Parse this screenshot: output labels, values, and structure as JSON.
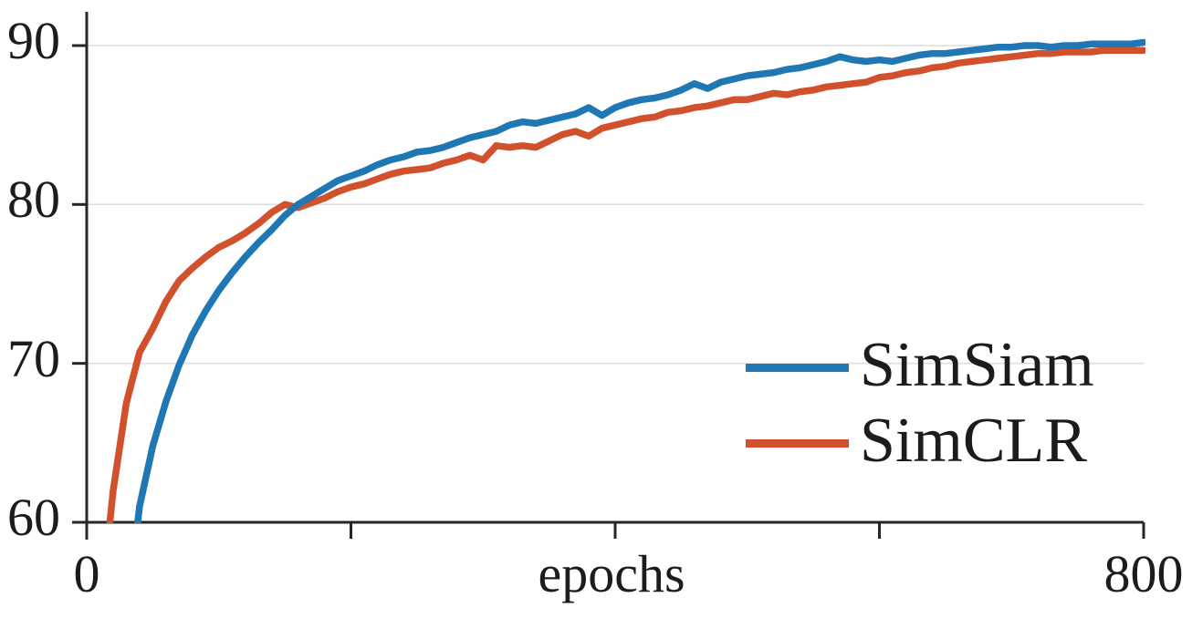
{
  "chart_data": {
    "type": "line",
    "title": "",
    "xlabel": "epochs",
    "ylabel": "",
    "xlim": [
      0,
      800
    ],
    "ylim": [
      60,
      90
    ],
    "xticks": [
      0,
      200,
      400,
      600,
      800
    ],
    "xtick_labels": [
      "0",
      "",
      "",
      "",
      "800"
    ],
    "yticks": [
      60,
      70,
      80,
      90
    ],
    "ytick_labels": [
      "60",
      "70",
      "80",
      "90"
    ],
    "grid": "horizontal-above-60",
    "grid_color": "#dedede",
    "axis_color": "#262626",
    "text_color": "#1c1c1c",
    "background": "#ffffff",
    "legend_position": "lower right",
    "series": [
      {
        "name": "SimSiam",
        "color": "#1f77b4",
        "x": [
          30,
          40,
          50,
          60,
          70,
          80,
          90,
          100,
          110,
          120,
          130,
          140,
          150,
          160,
          170,
          180,
          190,
          200,
          210,
          220,
          230,
          240,
          250,
          260,
          270,
          280,
          290,
          300,
          310,
          320,
          330,
          340,
          350,
          360,
          370,
          380,
          390,
          400,
          410,
          420,
          430,
          440,
          450,
          460,
          470,
          480,
          490,
          500,
          510,
          520,
          530,
          540,
          550,
          560,
          570,
          580,
          590,
          600,
          610,
          620,
          630,
          640,
          650,
          660,
          670,
          680,
          690,
          700,
          710,
          720,
          730,
          740,
          750,
          760,
          770,
          780,
          790,
          800
        ],
        "y": [
          54.0,
          61.0,
          64.8,
          67.6,
          69.9,
          71.8,
          73.3,
          74.6,
          75.7,
          76.7,
          77.6,
          78.4,
          79.3,
          80.0,
          80.5,
          81.0,
          81.5,
          81.8,
          82.1,
          82.5,
          82.8,
          83.0,
          83.3,
          83.4,
          83.6,
          83.9,
          84.2,
          84.4,
          84.6,
          85.0,
          85.2,
          85.1,
          85.3,
          85.5,
          85.7,
          86.1,
          85.6,
          86.1,
          86.4,
          86.6,
          86.7,
          86.9,
          87.2,
          87.6,
          87.3,
          87.7,
          87.9,
          88.1,
          88.2,
          88.3,
          88.5,
          88.6,
          88.8,
          89.0,
          89.3,
          89.1,
          89.0,
          89.1,
          89.0,
          89.2,
          89.4,
          89.5,
          89.5,
          89.6,
          89.7,
          89.8,
          89.9,
          89.9,
          90.0,
          90.0,
          89.9,
          90.0,
          90.0,
          90.1,
          90.1,
          90.1,
          90.1,
          90.2
        ]
      },
      {
        "name": "SimCLR",
        "color": "#d1512d",
        "x": [
          10,
          20,
          30,
          40,
          50,
          60,
          70,
          80,
          90,
          100,
          110,
          120,
          130,
          140,
          150,
          160,
          170,
          180,
          190,
          200,
          210,
          220,
          230,
          240,
          250,
          260,
          270,
          280,
          290,
          300,
          310,
          320,
          330,
          340,
          350,
          360,
          370,
          380,
          390,
          400,
          410,
          420,
          430,
          440,
          450,
          460,
          470,
          480,
          490,
          500,
          510,
          520,
          530,
          540,
          550,
          560,
          570,
          580,
          590,
          600,
          610,
          620,
          630,
          640,
          650,
          660,
          670,
          680,
          690,
          700,
          710,
          720,
          730,
          740,
          750,
          760,
          770,
          780,
          790,
          800
        ],
        "y": [
          54.0,
          62.0,
          67.5,
          70.7,
          72.2,
          73.9,
          75.2,
          76.0,
          76.7,
          77.3,
          77.7,
          78.2,
          78.8,
          79.5,
          80.0,
          79.8,
          80.1,
          80.4,
          80.8,
          81.1,
          81.3,
          81.6,
          81.9,
          82.1,
          82.2,
          82.3,
          82.6,
          82.8,
          83.1,
          82.8,
          83.7,
          83.6,
          83.7,
          83.6,
          84.0,
          84.4,
          84.6,
          84.3,
          84.8,
          85.0,
          85.2,
          85.4,
          85.5,
          85.8,
          85.9,
          86.1,
          86.2,
          86.4,
          86.6,
          86.6,
          86.8,
          87.0,
          86.9,
          87.1,
          87.2,
          87.4,
          87.5,
          87.6,
          87.7,
          88.0,
          88.1,
          88.3,
          88.4,
          88.6,
          88.7,
          88.9,
          89.0,
          89.1,
          89.2,
          89.3,
          89.4,
          89.5,
          89.5,
          89.6,
          89.6,
          89.6,
          89.7,
          89.7,
          89.7,
          89.7
        ]
      }
    ]
  }
}
